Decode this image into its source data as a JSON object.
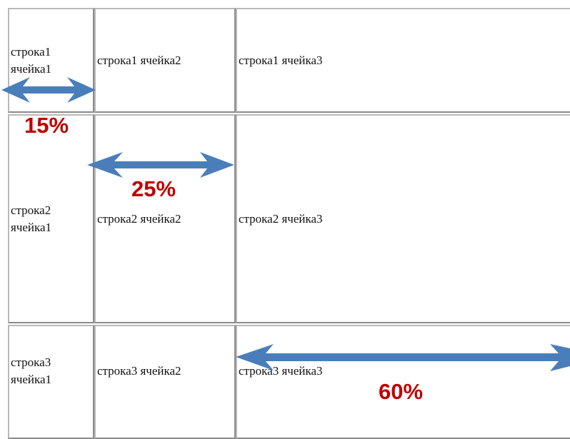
{
  "table": {
    "rows": [
      {
        "cells": [
          "строка1\nячейка1",
          "строка1 ячейка2",
          "строка1 ячейка3"
        ]
      },
      {
        "cells": [
          "строка2\nячейка1",
          "строка2 ячейка2",
          "строка2 ячейка3"
        ]
      },
      {
        "cells": [
          "строка3\nячейка1",
          "строка3 ячейка2",
          "строка3 ячейка3"
        ]
      }
    ]
  },
  "annotations": {
    "col1_width": "15%",
    "col2_width": "25%",
    "col3_width": "60%"
  },
  "colors": {
    "arrow": "#4a7ebb",
    "label": "#c00000",
    "border": "#b9b9b9"
  }
}
